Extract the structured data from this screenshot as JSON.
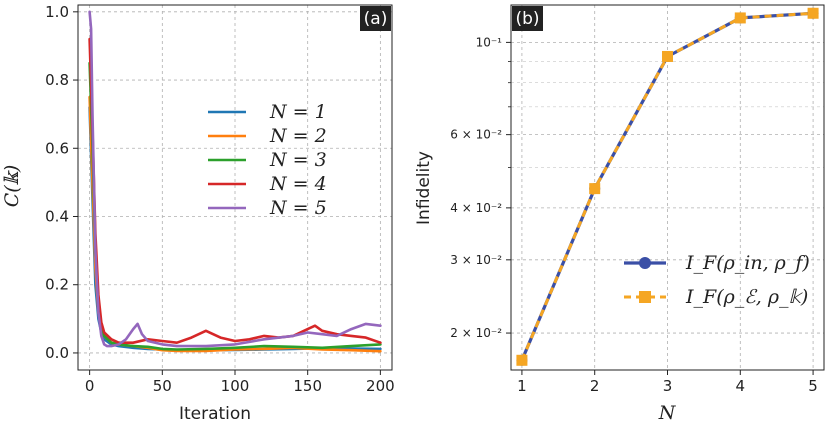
{
  "chart_data": [
    {
      "panel_label": "(a)",
      "type": "line",
      "xlabel": "Iteration",
      "ylabel": "C(𝕜)",
      "xlim": [
        -8,
        208
      ],
      "ylim": [
        -0.05,
        1.02
      ],
      "xticks": [
        0,
        50,
        100,
        150,
        200
      ],
      "yticks": [
        0.0,
        0.2,
        0.4,
        0.6,
        0.8,
        1.0
      ],
      "xtick_labels": [
        "0",
        "50",
        "100",
        "150",
        "200"
      ],
      "ytick_labels": [
        "0.0",
        "0.2",
        "0.4",
        "0.6",
        "0.8",
        "1.0"
      ],
      "grid": true,
      "legend_position": "center-right",
      "series": [
        {
          "name": "N = 1",
          "color": "#1f77b4",
          "x": [
            0,
            2,
            4,
            6,
            8,
            10,
            15,
            20,
            30,
            40,
            50,
            60,
            80,
            100,
            120,
            140,
            160,
            180,
            200
          ],
          "y": [
            0.72,
            0.45,
            0.2,
            0.1,
            0.06,
            0.04,
            0.025,
            0.02,
            0.015,
            0.012,
            0.01,
            0.008,
            0.008,
            0.009,
            0.01,
            0.012,
            0.014,
            0.013,
            0.012
          ]
        },
        {
          "name": "N = 2",
          "color": "#ff7f0e",
          "x": [
            0,
            2,
            4,
            6,
            8,
            10,
            15,
            20,
            30,
            40,
            50,
            60,
            80,
            100,
            120,
            140,
            160,
            180,
            200
          ],
          "y": [
            0.75,
            0.5,
            0.25,
            0.12,
            0.07,
            0.05,
            0.03,
            0.025,
            0.02,
            0.015,
            0.008,
            0.006,
            0.006,
            0.01,
            0.012,
            0.015,
            0.01,
            0.008,
            0.005
          ]
        },
        {
          "name": "N = 3",
          "color": "#2ca02c",
          "x": [
            0,
            2,
            4,
            6,
            8,
            10,
            15,
            20,
            30,
            40,
            50,
            60,
            80,
            100,
            120,
            140,
            160,
            180,
            200
          ],
          "y": [
            0.85,
            0.6,
            0.3,
            0.15,
            0.08,
            0.05,
            0.03,
            0.025,
            0.02,
            0.018,
            0.012,
            0.01,
            0.012,
            0.015,
            0.02,
            0.018,
            0.015,
            0.02,
            0.025
          ]
        },
        {
          "name": "N = 4",
          "color": "#d62728",
          "x": [
            0,
            2,
            4,
            6,
            8,
            10,
            15,
            20,
            30,
            40,
            50,
            60,
            70,
            80,
            90,
            100,
            110,
            120,
            130,
            140,
            150,
            155,
            160,
            170,
            180,
            190,
            200
          ],
          "y": [
            0.92,
            0.65,
            0.35,
            0.17,
            0.09,
            0.06,
            0.04,
            0.03,
            0.03,
            0.04,
            0.035,
            0.03,
            0.045,
            0.065,
            0.045,
            0.035,
            0.04,
            0.05,
            0.045,
            0.05,
            0.07,
            0.08,
            0.065,
            0.055,
            0.05,
            0.045,
            0.03
          ]
        },
        {
          "name": "N = 5",
          "color": "#9467bd",
          "x": [
            0,
            1,
            2,
            4,
            6,
            8,
            10,
            12,
            15,
            20,
            25,
            30,
            33,
            36,
            40,
            50,
            60,
            70,
            80,
            100,
            120,
            140,
            150,
            160,
            170,
            180,
            190,
            200
          ],
          "y": [
            1.0,
            0.95,
            0.7,
            0.3,
            0.12,
            0.05,
            0.025,
            0.02,
            0.02,
            0.025,
            0.04,
            0.07,
            0.085,
            0.055,
            0.035,
            0.025,
            0.02,
            0.02,
            0.02,
            0.025,
            0.04,
            0.05,
            0.06,
            0.055,
            0.05,
            0.07,
            0.085,
            0.08
          ]
        }
      ]
    },
    {
      "panel_label": "(b)",
      "type": "line",
      "yscale": "log",
      "xlabel": "N",
      "ylabel": "Infidelity",
      "xlim": [
        0.85,
        5.15
      ],
      "ylim": [
        0.0163,
        0.123
      ],
      "categories": [
        1,
        2,
        3,
        4,
        5
      ],
      "xtick_labels": [
        "1",
        "2",
        "3",
        "4",
        "5"
      ],
      "yticks": [
        0.02,
        0.03,
        0.04,
        0.06,
        0.1
      ],
      "ytick_labels": [
        "2 × 10⁻²",
        "3 × 10⁻²",
        "4 × 10⁻²",
        "6 × 10⁻²",
        "10⁻¹"
      ],
      "minor_yticks": [
        0.05,
        0.07,
        0.08,
        0.09
      ],
      "grid": true,
      "legend_position": "lower-right",
      "series": [
        {
          "name": "I_F(ρ_in, ρ_f)",
          "color": "#3a4fa6",
          "marker": "circle",
          "linestyle": "solid",
          "values": [
            0.0172,
            0.0445,
            0.0925,
            0.1145,
            0.1175
          ]
        },
        {
          "name": "I_F(ρ_ℰ, ρ_𝕜)",
          "color": "#f5a623",
          "marker": "square",
          "linestyle": "dashed",
          "values": [
            0.0172,
            0.0445,
            0.0925,
            0.1145,
            0.1175
          ]
        }
      ]
    }
  ]
}
